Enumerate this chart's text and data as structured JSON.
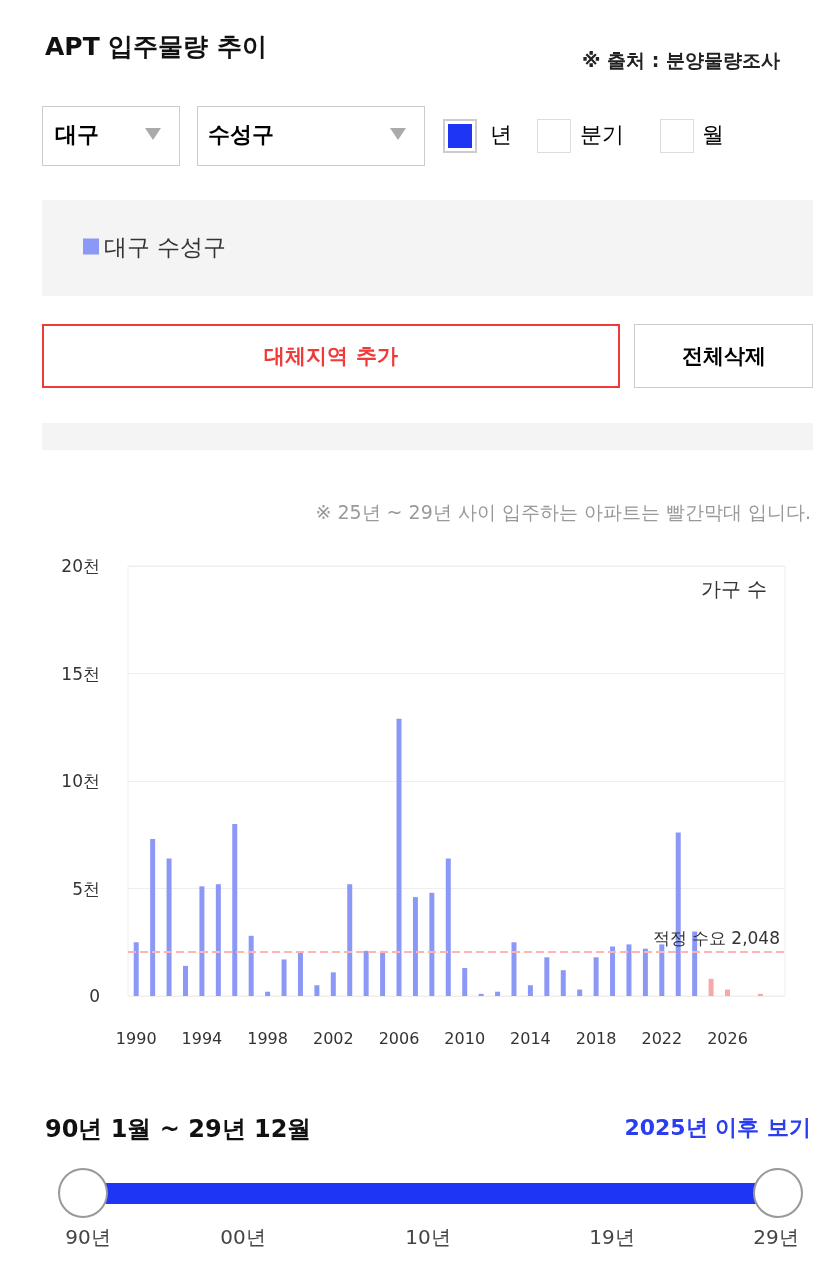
{
  "chart_data": {
    "type": "bar",
    "title": "APT 입주물량 추이",
    "ylabel": "가구 수",
    "categories": [
      "1990",
      null,
      null,
      null,
      "1994",
      null,
      null,
      null,
      "1998",
      null,
      null,
      null,
      "2002",
      null,
      null,
      null,
      "2006",
      null,
      null,
      null,
      "2010",
      null,
      null,
      null,
      "2014",
      null,
      null,
      null,
      "2018",
      null,
      null,
      null,
      "2022",
      null,
      null,
      null,
      "2026",
      null,
      null,
      null
    ],
    "series": [
      {
        "name": "대구 수성구",
        "color": "#8c98f5",
        "values": [
          2.5,
          7.3,
          6.4,
          1.4,
          5.1,
          5.2,
          8.0,
          2.8,
          0.2,
          1.7,
          2.0,
          0.5,
          1.1,
          5.2,
          2.1,
          2.1,
          12.9,
          4.6,
          4.8,
          6.4,
          1.3,
          0.1,
          0.2,
          2.5,
          0.5,
          1.8,
          1.2,
          0.3,
          1.8,
          2.3,
          2.4,
          2.2,
          2.4,
          7.6,
          3.0,
          0.8,
          0.3,
          0,
          0.1,
          0
        ],
        "colors": [
          "#8c98f5",
          "#8c98f5",
          "#8c98f5",
          "#8c98f5",
          "#8c98f5",
          "#8c98f5",
          "#8c98f5",
          "#8c98f5",
          "#8c98f5",
          "#8c98f5",
          "#8c98f5",
          "#8c98f5",
          "#8c98f5",
          "#8c98f5",
          "#8c98f5",
          "#8c98f5",
          "#8c98f5",
          "#8c98f5",
          "#8c98f5",
          "#8c98f5",
          "#8c98f5",
          "#8c98f5",
          "#8c98f5",
          "#8c98f5",
          "#8c98f5",
          "#8c98f5",
          "#8c98f5",
          "#8c98f5",
          "#8c98f5",
          "#8c98f5",
          "#8c98f5",
          "#8c98f5",
          "#8c98f5",
          "#8c98f5",
          "#8c98f5",
          "#f7a9a9",
          "#f7a9a9",
          "#f7a9a9",
          "#f7a9a9",
          "#f7a9a9"
        ]
      }
    ],
    "ylim": [
      0,
      20
    ],
    "yticks": [
      {
        "value": 0,
        "label": "0"
      },
      {
        "value": 5,
        "label": "5천"
      },
      {
        "value": 10,
        "label": "10천"
      },
      {
        "value": 15,
        "label": "15천"
      },
      {
        "value": 20,
        "label": "20천"
      }
    ],
    "ref_lines": [
      {
        "axis": "y",
        "value": 2.048,
        "label": "적정 수요 2,048",
        "color": "#ffb3b3",
        "line_style": "dashed"
      }
    ],
    "grid": "y",
    "legend": "top left",
    "annotations": [
      "※ 출처 : 분양물량조사",
      "대구",
      "수성구",
      "년",
      "분기",
      "월",
      "대체지역 추가",
      "전체삭제",
      "※ 25년 ~ 29년 사이 입주하는 아파트는 빨간막대 입니다.",
      "90년 1월 ~ 29년 12월",
      "2025년 이후 보기",
      "90년",
      "00년",
      "10년",
      "19년",
      "29년"
    ]
  }
}
